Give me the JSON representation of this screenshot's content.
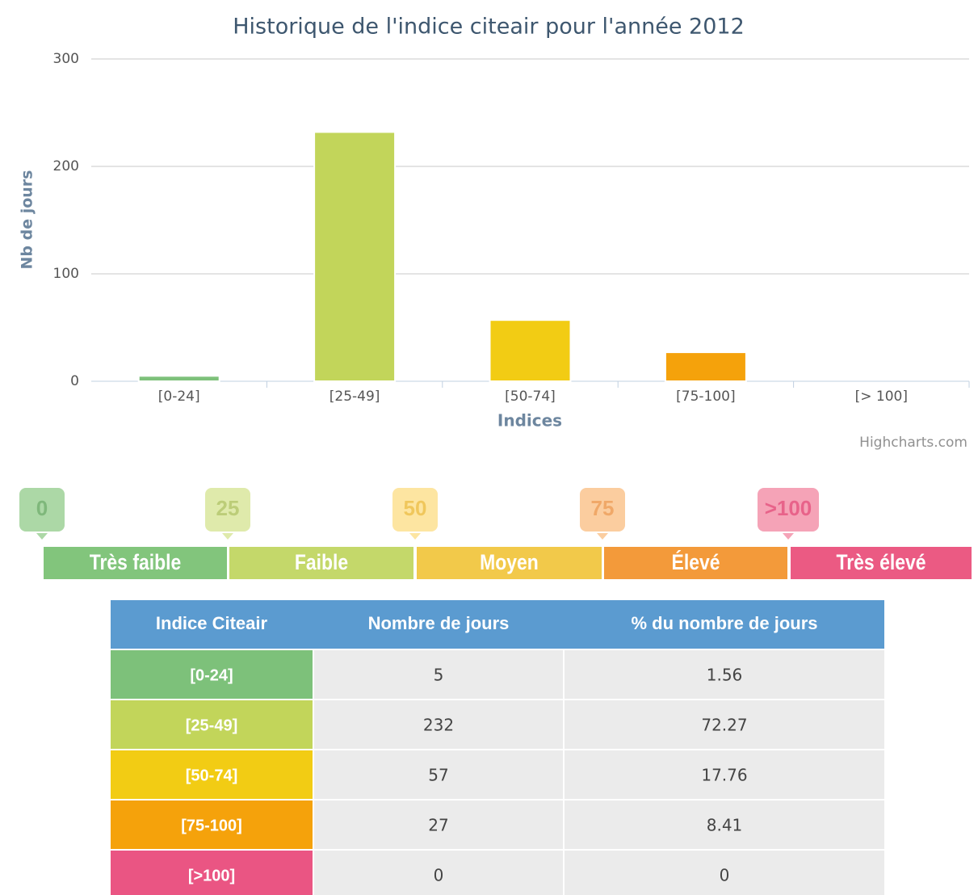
{
  "chart_data": {
    "type": "bar",
    "title": "Historique de l'indice citeair pour l'année 2012",
    "categories": [
      "[0-24]",
      "[25-49]",
      "[50-74]",
      "[75-100]",
      "[> 100]"
    ],
    "values": [
      5,
      232,
      57,
      27,
      0
    ],
    "colors": [
      "#7dc17a",
      "#c2d55a",
      "#f2cc14",
      "#f5a20b",
      "#e8557f"
    ],
    "ylim": [
      0,
      300
    ],
    "yticks": [
      0,
      100,
      200,
      300
    ],
    "grid": true,
    "y_label": "Nb de jours",
    "x_label": "Indices",
    "credits": "Highcharts.com"
  },
  "scale": {
    "ticks": [
      "0",
      "25",
      "50",
      ">100"
    ],
    "tick_75": "75",
    "levels": [
      "Très faible",
      "Faible",
      "Moyen",
      "Élevé",
      "Très élevé"
    ]
  },
  "table": {
    "header": [
      "Indice Citeair",
      "Nombre de jours",
      "% du nombre de jours"
    ],
    "rows": [
      [
        "[0-24]",
        5,
        1.56
      ],
      [
        "[25-49]",
        232,
        72.27
      ],
      [
        "[50-74]",
        57,
        17.76
      ],
      [
        "[75-100]",
        27,
        8.41
      ],
      [
        "[>100]",
        0,
        0
      ]
    ]
  }
}
